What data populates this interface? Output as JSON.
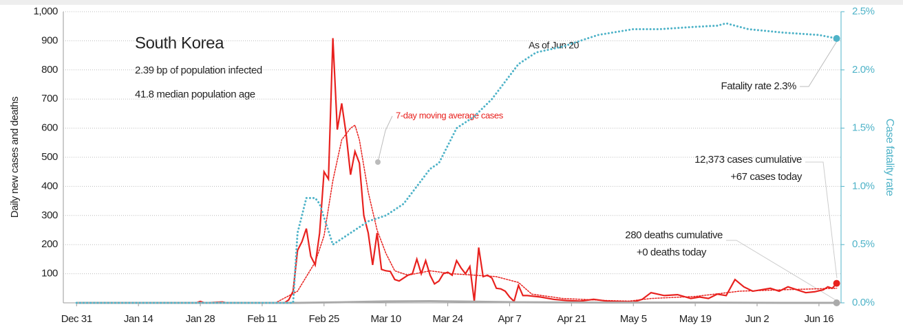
{
  "chart_data": {
    "type": "line",
    "title": "South Korea",
    "subtitle": [
      "2.39 bp of population infected",
      "41.8 median population age"
    ],
    "ylabel": "Daily new cases and deaths",
    "y2label": "Case fatality rate",
    "annotations": {
      "as_of": "As of Jun 20",
      "fatality": "Fatality rate 2.3%",
      "ma": "7-day moving average cases",
      "cases": [
        "12,373 cases cumulative",
        "+67 cases today"
      ],
      "deaths": [
        "280 deaths cumulative",
        "+0 deaths today"
      ]
    },
    "xlim": [
      -3,
      173
    ],
    "xticks": [
      {
        "value": 0,
        "label": "Dec 31"
      },
      {
        "value": 14,
        "label": "Jan 14"
      },
      {
        "value": 28,
        "label": "Jan 28"
      },
      {
        "value": 42,
        "label": "Feb 11"
      },
      {
        "value": 56,
        "label": "Feb 25"
      },
      {
        "value": 70,
        "label": "Mar 10"
      },
      {
        "value": 84,
        "label": "Mar 24"
      },
      {
        "value": 98,
        "label": "Apr 7"
      },
      {
        "value": 112,
        "label": "Apr 21"
      },
      {
        "value": 126,
        "label": "May 5"
      },
      {
        "value": 140,
        "label": "May 19"
      },
      {
        "value": 154,
        "label": "Jun 2"
      },
      {
        "value": 168,
        "label": "Jun 16"
      }
    ],
    "ylim": [
      0,
      1000
    ],
    "yticks": [
      100,
      200,
      300,
      400,
      500,
      600,
      700,
      800,
      900,
      {
        "value": 1000,
        "label": "1,000"
      }
    ],
    "y2lim": [
      0,
      2.5
    ],
    "y2ticks": [
      {
        "value": 0,
        "label": "0.0%"
      },
      {
        "value": 0.5,
        "label": "0.5%"
      },
      {
        "value": 1,
        "label": "1.0%"
      },
      {
        "value": 1.5,
        "label": "1.5%"
      },
      {
        "value": 2,
        "label": "2.0%"
      },
      {
        "value": 2.5,
        "label": "2.5%"
      }
    ],
    "grid": true,
    "series": [
      {
        "name": "Daily new cases",
        "color": "#e8211e",
        "style": "solid",
        "x": [
          0,
          10,
          20,
          27,
          28,
          29,
          33,
          34,
          47,
          48,
          49,
          50,
          51,
          52,
          53,
          54,
          55,
          56,
          57,
          58,
          59,
          60,
          61,
          62,
          63,
          64,
          65,
          66,
          67,
          68,
          69,
          70,
          71,
          72,
          73,
          74,
          75,
          76,
          77,
          78,
          79,
          80,
          81,
          82,
          83,
          84,
          85,
          86,
          87,
          88,
          89,
          90,
          91,
          92,
          93,
          94,
          95,
          96,
          97,
          98,
          99,
          100,
          101,
          102,
          105,
          108,
          111,
          114,
          117,
          120,
          123,
          126,
          128,
          130,
          133,
          136,
          139,
          141,
          143,
          145,
          147,
          149,
          151,
          153,
          155,
          157,
          159,
          161,
          163,
          165,
          167,
          169,
          170,
          171,
          172
        ],
        "values": [
          0,
          0,
          1,
          0,
          5,
          0,
          3,
          0,
          0,
          10,
          40,
          180,
          210,
          255,
          160,
          130,
          240,
          450,
          425,
          909,
          595,
          685,
          580,
          440,
          520,
          480,
          300,
          240,
          130,
          240,
          115,
          110,
          108,
          80,
          75,
          85,
          95,
          100,
          150,
          100,
          145,
          95,
          65,
          75,
          100,
          105,
          95,
          145,
          120,
          100,
          125,
          5,
          190,
          90,
          95,
          85,
          50,
          48,
          40,
          20,
          5,
          60,
          25,
          25,
          20,
          12,
          8,
          6,
          12,
          6,
          4,
          3,
          12,
          35,
          25,
          28,
          15,
          20,
          15,
          30,
          25,
          80,
          55,
          40,
          45,
          50,
          40,
          55,
          45,
          35,
          38,
          45,
          55,
          50,
          67
        ]
      },
      {
        "name": "7-day moving average cases",
        "color": "#e8211e",
        "style": "dotted",
        "x": [
          0,
          45,
          50,
          54,
          56,
          58,
          60,
          62,
          63,
          64,
          66,
          68,
          70,
          72,
          75,
          80,
          85,
          90,
          95,
          100,
          103,
          110,
          120,
          125,
          130,
          140,
          150,
          160,
          172
        ],
        "values": [
          0,
          0,
          40,
          140,
          230,
          420,
          560,
          600,
          610,
          560,
          380,
          250,
          170,
          110,
          95,
          110,
          100,
          95,
          90,
          70,
          30,
          15,
          8,
          6,
          15,
          22,
          40,
          45,
          50
        ]
      },
      {
        "name": "Daily deaths",
        "color": "#aaaaaa",
        "style": "solid",
        "x": [
          0,
          50,
          60,
          70,
          80,
          90,
          100,
          120,
          140,
          160,
          172
        ],
        "values": [
          0,
          0,
          2,
          5,
          6,
          4,
          2,
          1,
          1,
          0,
          0
        ]
      },
      {
        "name": "Case fatality rate",
        "color": "#4fb3c8",
        "style": "dotted",
        "axis": "y2",
        "x": [
          0,
          49,
          50,
          52,
          54,
          55,
          58,
          62,
          66,
          70,
          74,
          76,
          80,
          82,
          86,
          90,
          94,
          98,
          100,
          104,
          110,
          118,
          126,
          132,
          140,
          145,
          147,
          152,
          160,
          168,
          172
        ],
        "values": [
          0,
          0,
          0.6,
          0.9,
          0.9,
          0.85,
          0.5,
          0.6,
          0.7,
          0.75,
          0.85,
          0.95,
          1.15,
          1.2,
          1.5,
          1.6,
          1.75,
          1.95,
          2.05,
          2.15,
          2.2,
          2.3,
          2.35,
          2.35,
          2.37,
          2.38,
          2.4,
          2.35,
          2.32,
          2.3,
          2.27
        ]
      }
    ]
  }
}
